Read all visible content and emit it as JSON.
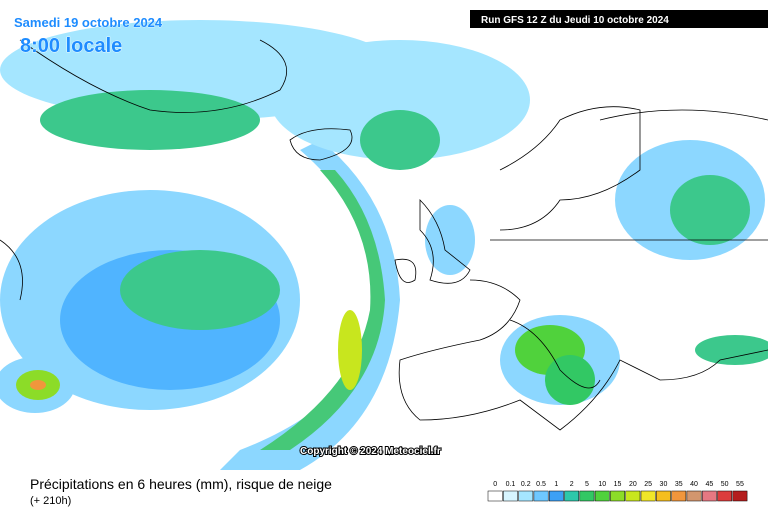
{
  "header": {
    "date": "Samedi 19 octobre 2024",
    "time": "8:00 locale",
    "run": "Run GFS 12 Z du Jeudi 10 octobre 2024"
  },
  "copyright": "Copyright © 2024 Meteociel.fr",
  "footer": {
    "title": "Précipitations en 6 heures (mm), risque de neige",
    "lead": "(+ 210h)"
  },
  "legend": {
    "labels": [
      "0",
      "0.1",
      "0.2",
      "0.5",
      "1",
      "2",
      "5",
      "10",
      "15",
      "20",
      "25",
      "30",
      "35",
      "40",
      "45",
      "50",
      "55"
    ],
    "colors": [
      "#ffffff",
      "#d7f5ff",
      "#a5e6ff",
      "#6ec8ff",
      "#3ca0f5",
      "#2dc8aa",
      "#32c864",
      "#50d23c",
      "#8cdc28",
      "#c8e61e",
      "#f0e628",
      "#f5be1e",
      "#f0963c",
      "#d2966e",
      "#e67882",
      "#dc3c3c",
      "#b41e1e"
    ]
  }
}
